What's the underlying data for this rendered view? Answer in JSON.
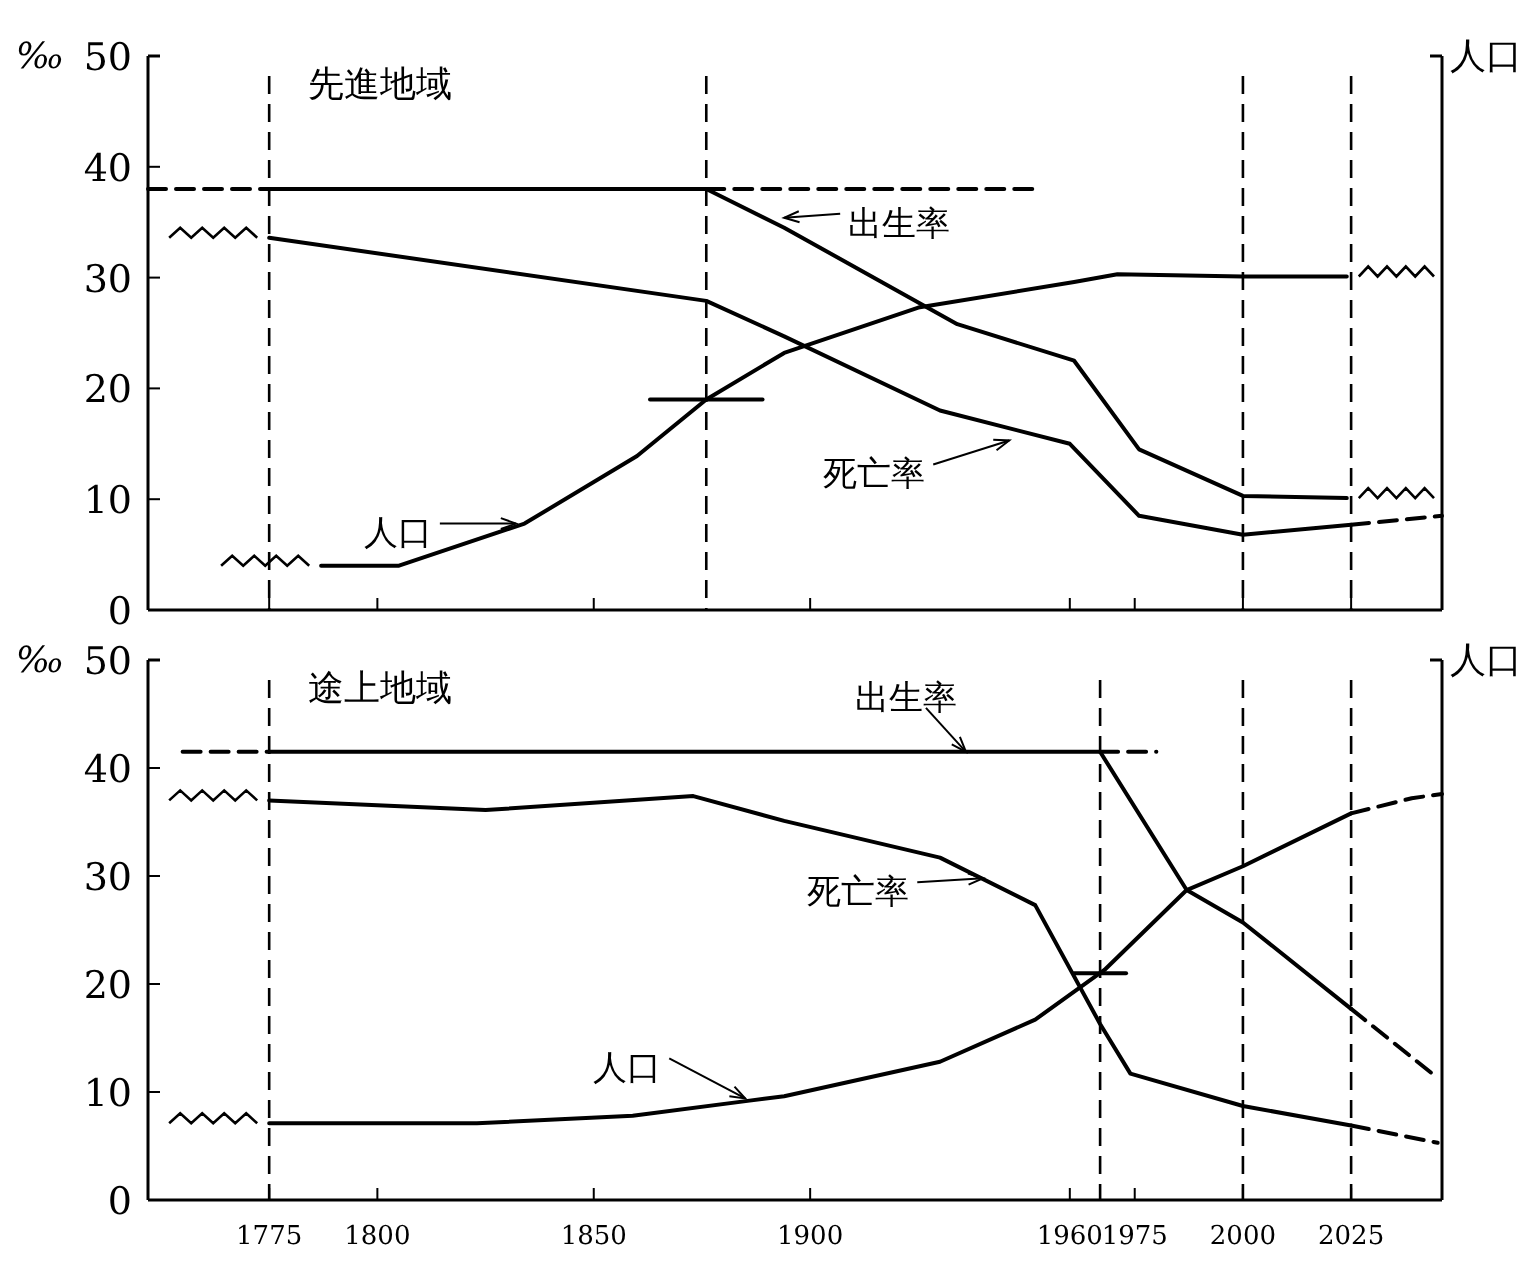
{
  "chart_data": [
    {
      "type": "line",
      "title": "先進地域",
      "ylabel": "‰",
      "y2label": "人口",
      "xlim": [
        1747,
        2046
      ],
      "xticks": [
        1775,
        1800,
        1850,
        1900,
        1960,
        1975,
        2000,
        2025
      ],
      "ylim": [
        0,
        50
      ],
      "yticks": [
        0,
        10,
        20,
        30,
        40,
        50
      ],
      "tick_labels": "y",
      "series": [
        {
          "color": "#000000",
          "line_style": "solid",
          "x": [
            1775,
            1876,
            1894,
            1934,
            1961,
            1976,
            2000,
            2024
          ],
          "values": [
            38,
            38,
            34.5,
            25.8,
            22.5,
            14.5,
            10.3,
            10.1
          ]
        },
        {
          "color": "#000000",
          "line_style": "dashed",
          "x": [
            1747,
            1775
          ],
          "values": [
            38,
            38
          ]
        },
        {
          "color": "#000000",
          "line_style": "dashed",
          "x": [
            1876,
            1953
          ],
          "values": [
            38,
            38
          ]
        },
        {
          "color": "#000000",
          "line_style": "solid",
          "x": [
            1775,
            1876,
            1894,
            1930,
            1960,
            1976,
            2000,
            2025
          ],
          "values": [
            33.6,
            27.9,
            24.7,
            18.0,
            15.0,
            8.5,
            6.8,
            7.7
          ]
        },
        {
          "color": "#000000",
          "line_style": "dashed",
          "x": [
            2025,
            2046
          ],
          "values": [
            7.7,
            8.5
          ]
        },
        {
          "color": "#000000",
          "line_style": "solid",
          "x": [
            1787,
            1805,
            1834,
            1860,
            1876,
            1894,
            1925,
            1961,
            1971,
            2000,
            2024
          ],
          "values": [
            4.0,
            4.0,
            7.8,
            13.9,
            19.0,
            23.2,
            27.3,
            29.6,
            30.3,
            30.1,
            30.1
          ]
        },
        {
          "color": "#000000",
          "line_style": "solid",
          "x": [
            1863,
            1889
          ],
          "values": [
            19,
            19
          ]
        }
      ],
      "ref_lines": [
        {
          "axis": "x",
          "value": 1775,
          "line_style": "dashed"
        },
        {
          "axis": "x",
          "value": 1876,
          "line_style": "dashed"
        },
        {
          "axis": "x",
          "value": 2000,
          "line_style": "dashed"
        },
        {
          "axis": "x",
          "value": 2025,
          "line_style": "dashed"
        }
      ],
      "annotations": [
        {
          "text": "出生率",
          "x": 1894,
          "y": 35.4
        },
        {
          "text": "死亡率",
          "x": 1946,
          "y": 15.3
        },
        {
          "text": "人口",
          "x": 1832,
          "y": 7.8
        }
      ]
    },
    {
      "type": "line",
      "title": "途上地域",
      "ylabel": "‰",
      "y2label": "人口",
      "xlim": [
        1747,
        2046
      ],
      "xticks": [
        1775,
        1800,
        1850,
        1900,
        1960,
        1975,
        2000,
        2025
      ],
      "ylim": [
        0,
        50
      ],
      "yticks": [
        0,
        10,
        20,
        30,
        40,
        50
      ],
      "series": [
        {
          "color": "#000000",
          "line_style": "solid",
          "x": [
            1775,
            1967,
            1987,
            2000,
            2025
          ],
          "values": [
            41.5,
            41.5,
            28.7,
            25.7,
            17.7
          ]
        },
        {
          "color": "#000000",
          "line_style": "dashed",
          "x": [
            1755,
            1775
          ],
          "values": [
            41.5,
            41.5
          ]
        },
        {
          "color": "#000000",
          "line_style": "dashed",
          "x": [
            1967,
            1980
          ],
          "values": [
            41.5,
            41.5
          ]
        },
        {
          "color": "#000000",
          "line_style": "dashed",
          "x": [
            2025,
            2045
          ],
          "values": [
            17.7,
            11.3
          ]
        },
        {
          "color": "#000000",
          "line_style": "solid",
          "x": [
            1775,
            1825,
            1873,
            1894,
            1930,
            1952,
            1967,
            1974,
            2000,
            2025
          ],
          "values": [
            37.0,
            36.1,
            37.4,
            35.1,
            31.7,
            27.3,
            16.3,
            11.7,
            8.7,
            6.9
          ]
        },
        {
          "color": "#000000",
          "line_style": "dashed",
          "x": [
            2025,
            2045
          ],
          "values": [
            6.9,
            5.3
          ]
        },
        {
          "color": "#000000",
          "line_style": "solid",
          "x": [
            1775,
            1823,
            1859,
            1886,
            1894,
            1930,
            1952,
            1968,
            1987,
            2000,
            2025
          ],
          "values": [
            7.1,
            7.1,
            7.8,
            9.2,
            9.6,
            12.8,
            16.7,
            21.3,
            28.7,
            30.9,
            35.8
          ]
        },
        {
          "color": "#000000",
          "line_style": "dashed",
          "x": [
            2025,
            2039,
            2046
          ],
          "values": [
            35.8,
            37.2,
            37.6
          ]
        },
        {
          "color": "#000000",
          "line_style": "solid",
          "x": [
            1961,
            1973
          ],
          "values": [
            21,
            21
          ]
        }
      ],
      "ref_lines": [
        {
          "axis": "x",
          "value": 1775,
          "line_style": "dashed"
        },
        {
          "axis": "x",
          "value": 1967,
          "line_style": "dashed"
        },
        {
          "axis": "x",
          "value": 2000,
          "line_style": "dashed"
        },
        {
          "axis": "x",
          "value": 2025,
          "line_style": "dashed"
        }
      ],
      "annotations": [
        {
          "text": "出生率",
          "x": 1936,
          "y": 41.5
        },
        {
          "text": "死亡率",
          "x": 1940,
          "y": 29.8
        },
        {
          "text": "人口",
          "x": 1885,
          "y": 9.4
        }
      ]
    }
  ]
}
